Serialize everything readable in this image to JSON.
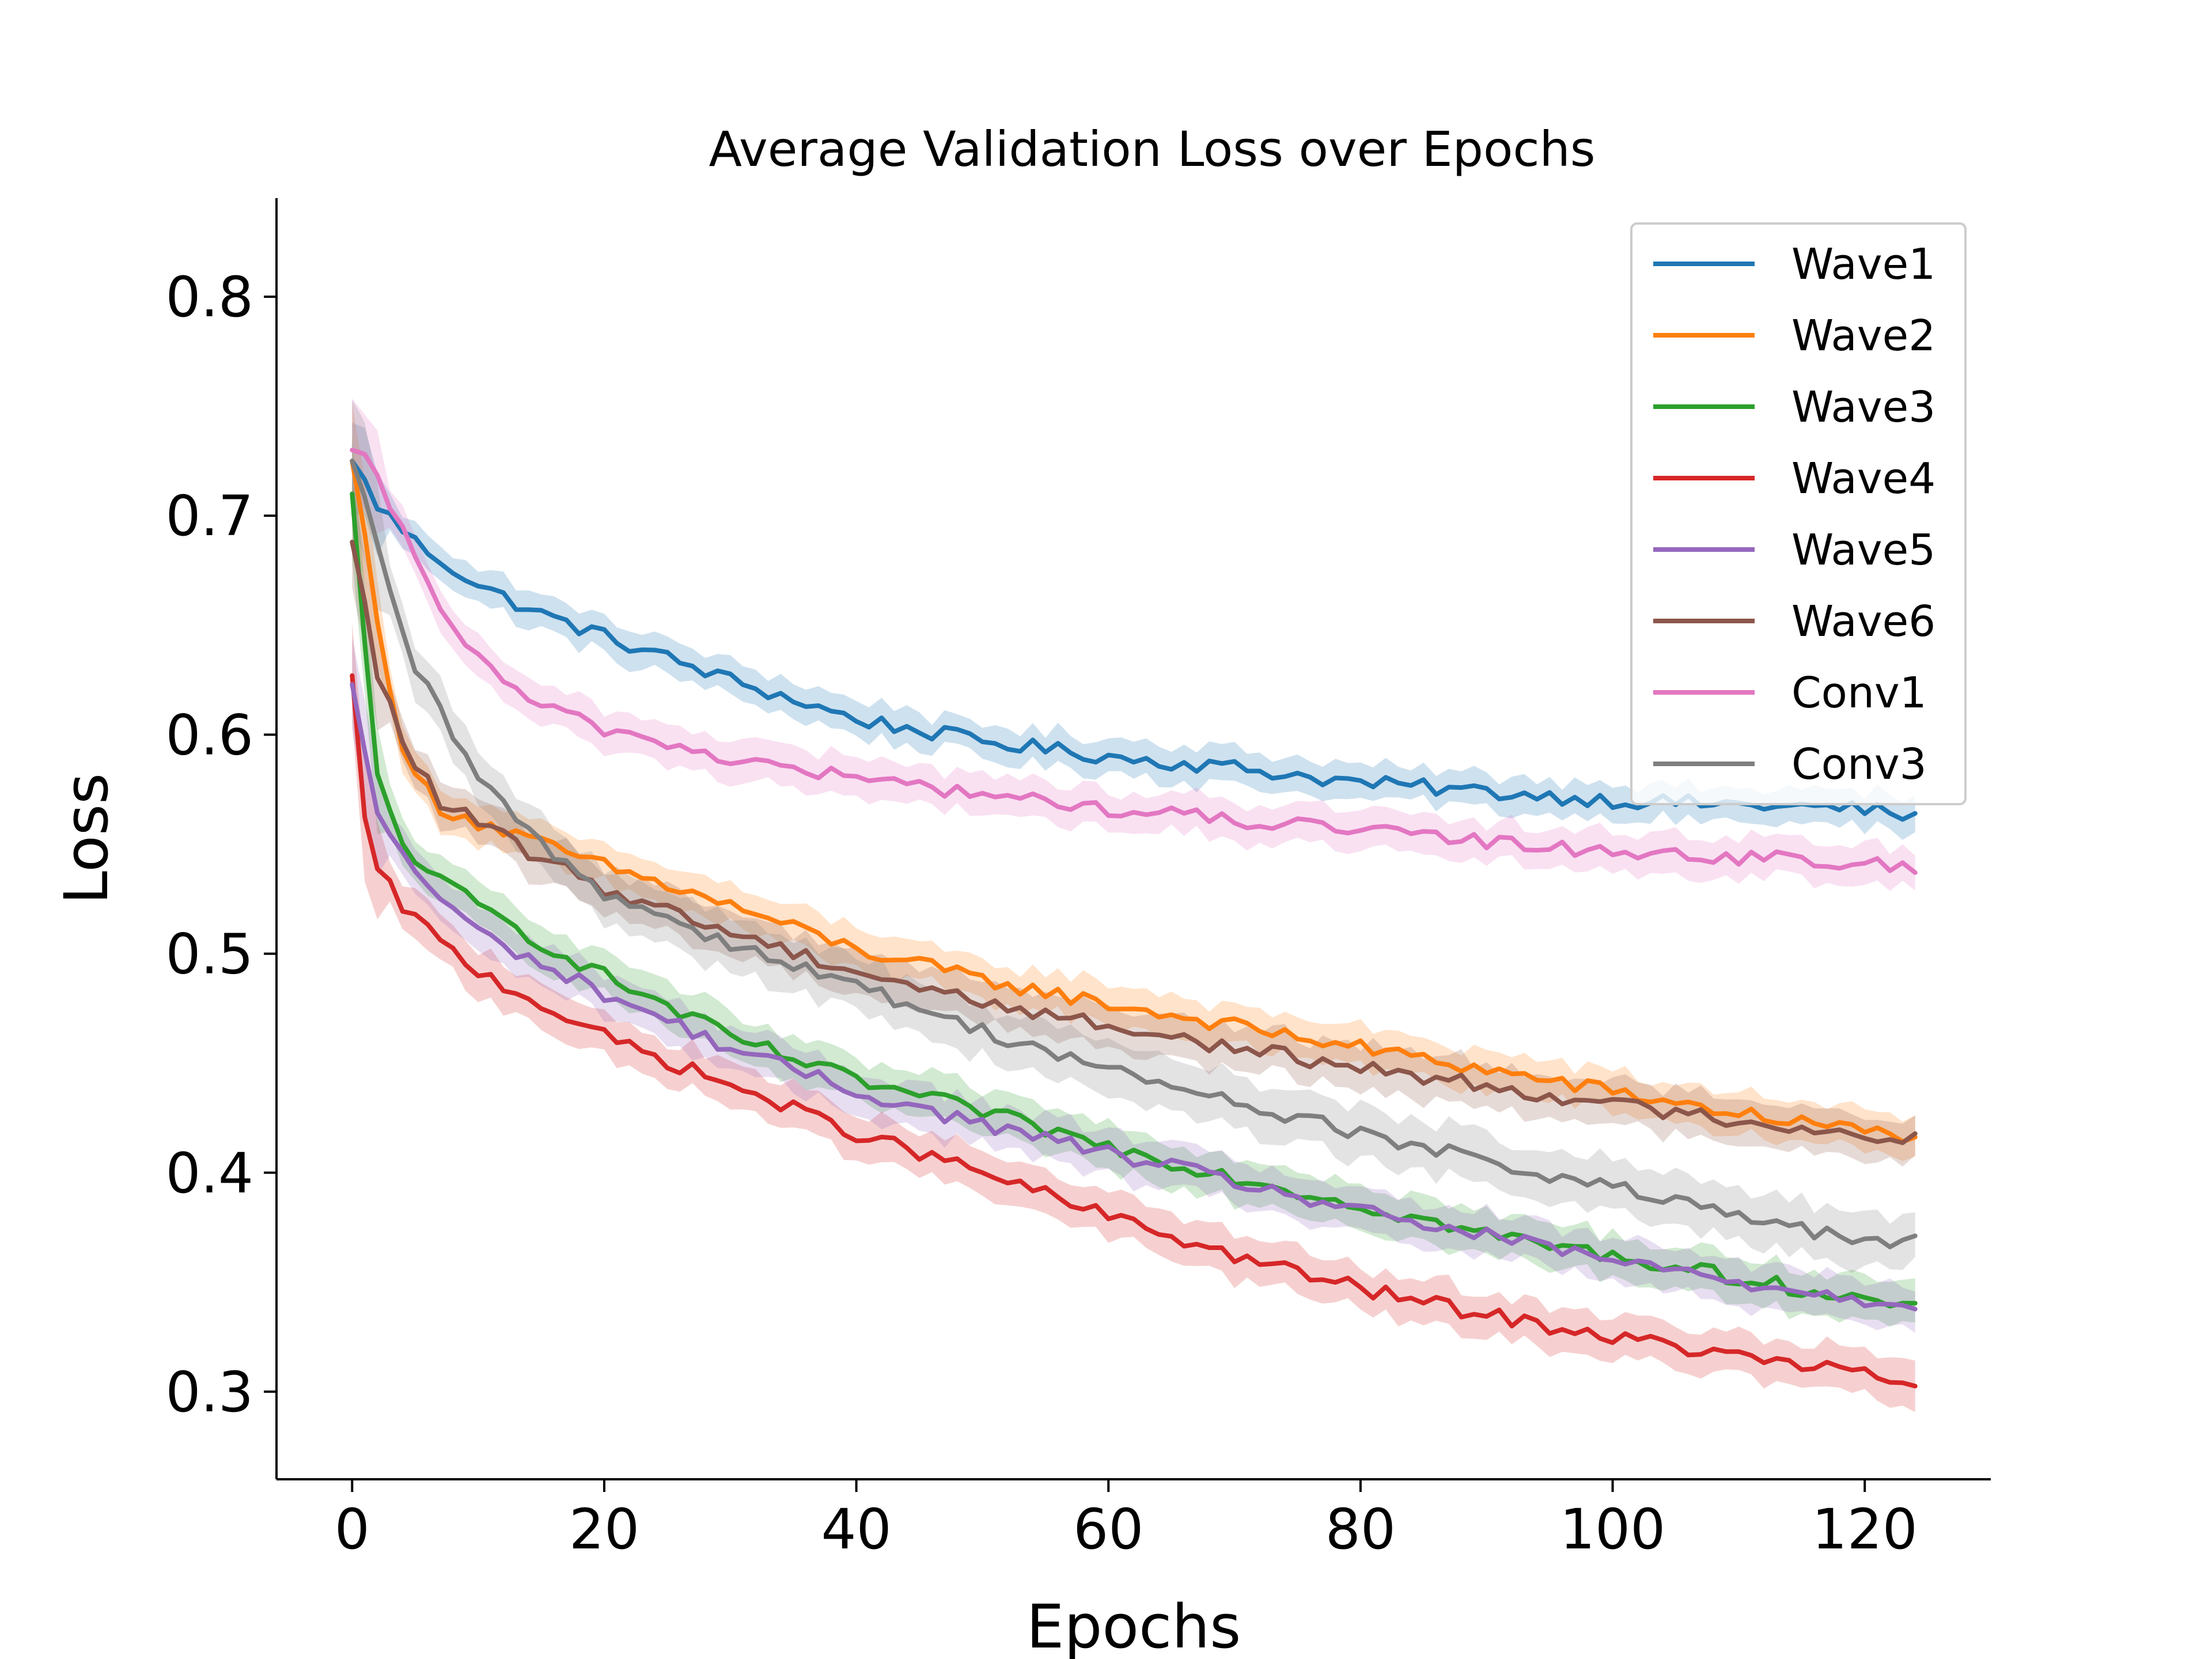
{
  "chart_data": {
    "type": "line",
    "title": "Average Validation Loss over Epochs",
    "xlabel": "Epochs",
    "ylabel": "Loss",
    "xlim": [
      -6,
      130
    ],
    "ylim": [
      0.26,
      0.845
    ],
    "xticks": [
      0,
      20,
      40,
      60,
      80,
      100,
      120
    ],
    "yticks": [
      0.3,
      0.4,
      0.5,
      0.6,
      0.7,
      0.8
    ],
    "xtick_labels": [
      "0",
      "20",
      "40",
      "60",
      "80",
      "100",
      "120"
    ],
    "ytick_labels": [
      "0.3",
      "0.4",
      "0.5",
      "0.6",
      "0.7",
      "0.8"
    ],
    "grid": false,
    "legend_position": "top-right",
    "x_epochs": [
      0,
      124
    ],
    "series": [
      {
        "name": "Wave1",
        "color": "#1f77b4",
        "band_halfwidth": 0.008,
        "points": [
          [
            0,
            0.725
          ],
          [
            2,
            0.705
          ],
          [
            5,
            0.688
          ],
          [
            10,
            0.668
          ],
          [
            15,
            0.655
          ],
          [
            20,
            0.645
          ],
          [
            30,
            0.625
          ],
          [
            40,
            0.607
          ],
          [
            50,
            0.597
          ],
          [
            60,
            0.59
          ],
          [
            70,
            0.585
          ],
          [
            80,
            0.578
          ],
          [
            90,
            0.574
          ],
          [
            100,
            0.57
          ],
          [
            110,
            0.568
          ],
          [
            120,
            0.566
          ],
          [
            124,
            0.562
          ]
        ]
      },
      {
        "name": "Wave2",
        "color": "#ff7f0e",
        "band_halfwidth": 0.009,
        "points": [
          [
            0,
            0.725
          ],
          [
            2,
            0.655
          ],
          [
            4,
            0.59
          ],
          [
            7,
            0.567
          ],
          [
            10,
            0.56
          ],
          [
            15,
            0.55
          ],
          [
            20,
            0.54
          ],
          [
            30,
            0.522
          ],
          [
            40,
            0.502
          ],
          [
            50,
            0.488
          ],
          [
            60,
            0.477
          ],
          [
            70,
            0.467
          ],
          [
            80,
            0.457
          ],
          [
            90,
            0.447
          ],
          [
            100,
            0.437
          ],
          [
            110,
            0.427
          ],
          [
            120,
            0.419
          ],
          [
            124,
            0.417
          ]
        ]
      },
      {
        "name": "Wave3",
        "color": "#2ca02c",
        "band_halfwidth": 0.01,
        "points": [
          [
            0,
            0.71
          ],
          [
            1,
            0.64
          ],
          [
            2,
            0.58
          ],
          [
            4,
            0.55
          ],
          [
            7,
            0.533
          ],
          [
            10,
            0.522
          ],
          [
            15,
            0.505
          ],
          [
            20,
            0.49
          ],
          [
            30,
            0.462
          ],
          [
            40,
            0.442
          ],
          [
            50,
            0.428
          ],
          [
            60,
            0.412
          ],
          [
            70,
            0.398
          ],
          [
            80,
            0.385
          ],
          [
            90,
            0.372
          ],
          [
            100,
            0.362
          ],
          [
            110,
            0.352
          ],
          [
            120,
            0.342
          ],
          [
            124,
            0.337
          ]
        ]
      },
      {
        "name": "Wave4",
        "color": "#d62728",
        "band_halfwidth": 0.01,
        "points": [
          [
            0,
            0.627
          ],
          [
            1,
            0.56
          ],
          [
            2,
            0.538
          ],
          [
            4,
            0.522
          ],
          [
            7,
            0.505
          ],
          [
            10,
            0.492
          ],
          [
            15,
            0.477
          ],
          [
            20,
            0.462
          ],
          [
            30,
            0.44
          ],
          [
            40,
            0.418
          ],
          [
            50,
            0.4
          ],
          [
            60,
            0.38
          ],
          [
            70,
            0.362
          ],
          [
            80,
            0.347
          ],
          [
            90,
            0.335
          ],
          [
            100,
            0.325
          ],
          [
            110,
            0.316
          ],
          [
            120,
            0.308
          ],
          [
            124,
            0.302
          ]
        ]
      },
      {
        "name": "Wave5",
        "color": "#9467bd",
        "band_halfwidth": 0.01,
        "points": [
          [
            0,
            0.623
          ],
          [
            1,
            0.59
          ],
          [
            2,
            0.565
          ],
          [
            4,
            0.545
          ],
          [
            7,
            0.525
          ],
          [
            10,
            0.51
          ],
          [
            15,
            0.495
          ],
          [
            20,
            0.482
          ],
          [
            30,
            0.457
          ],
          [
            40,
            0.437
          ],
          [
            50,
            0.422
          ],
          [
            60,
            0.409
          ],
          [
            70,
            0.396
          ],
          [
            80,
            0.382
          ],
          [
            90,
            0.371
          ],
          [
            100,
            0.36
          ],
          [
            110,
            0.35
          ],
          [
            120,
            0.342
          ],
          [
            124,
            0.34
          ]
        ]
      },
      {
        "name": "Wave6",
        "color": "#8c564b",
        "band_halfwidth": 0.01,
        "points": [
          [
            0,
            0.688
          ],
          [
            2,
            0.628
          ],
          [
            4,
            0.598
          ],
          [
            7,
            0.568
          ],
          [
            10,
            0.56
          ],
          [
            15,
            0.543
          ],
          [
            20,
            0.53
          ],
          [
            30,
            0.51
          ],
          [
            40,
            0.492
          ],
          [
            50,
            0.478
          ],
          [
            60,
            0.467
          ],
          [
            70,
            0.457
          ],
          [
            80,
            0.448
          ],
          [
            90,
            0.44
          ],
          [
            100,
            0.431
          ],
          [
            110,
            0.424
          ],
          [
            120,
            0.417
          ],
          [
            124,
            0.416
          ]
        ]
      },
      {
        "name": "Conv1",
        "color": "#e377c2",
        "band_halfwidth": 0.009,
        "points": [
          [
            0,
            0.73
          ],
          [
            1,
            0.725
          ],
          [
            3,
            0.705
          ],
          [
            5,
            0.68
          ],
          [
            8,
            0.65
          ],
          [
            10,
            0.634
          ],
          [
            15,
            0.612
          ],
          [
            20,
            0.603
          ],
          [
            30,
            0.589
          ],
          [
            40,
            0.58
          ],
          [
            50,
            0.573
          ],
          [
            60,
            0.566
          ],
          [
            70,
            0.561
          ],
          [
            80,
            0.556
          ],
          [
            90,
            0.551
          ],
          [
            100,
            0.547
          ],
          [
            110,
            0.544
          ],
          [
            120,
            0.541
          ],
          [
            124,
            0.538
          ]
        ]
      },
      {
        "name": "Conv3",
        "color": "#7f7f7f",
        "band_halfwidth": 0.012,
        "points": [
          [
            0,
            0.725
          ],
          [
            1,
            0.705
          ],
          [
            3,
            0.665
          ],
          [
            5,
            0.63
          ],
          [
            8,
            0.6
          ],
          [
            10,
            0.58
          ],
          [
            15,
            0.55
          ],
          [
            20,
            0.528
          ],
          [
            30,
            0.505
          ],
          [
            40,
            0.485
          ],
          [
            50,
            0.465
          ],
          [
            60,
            0.447
          ],
          [
            70,
            0.432
          ],
          [
            80,
            0.418
          ],
          [
            90,
            0.405
          ],
          [
            100,
            0.393
          ],
          [
            110,
            0.38
          ],
          [
            120,
            0.368
          ],
          [
            124,
            0.368
          ]
        ]
      }
    ]
  }
}
